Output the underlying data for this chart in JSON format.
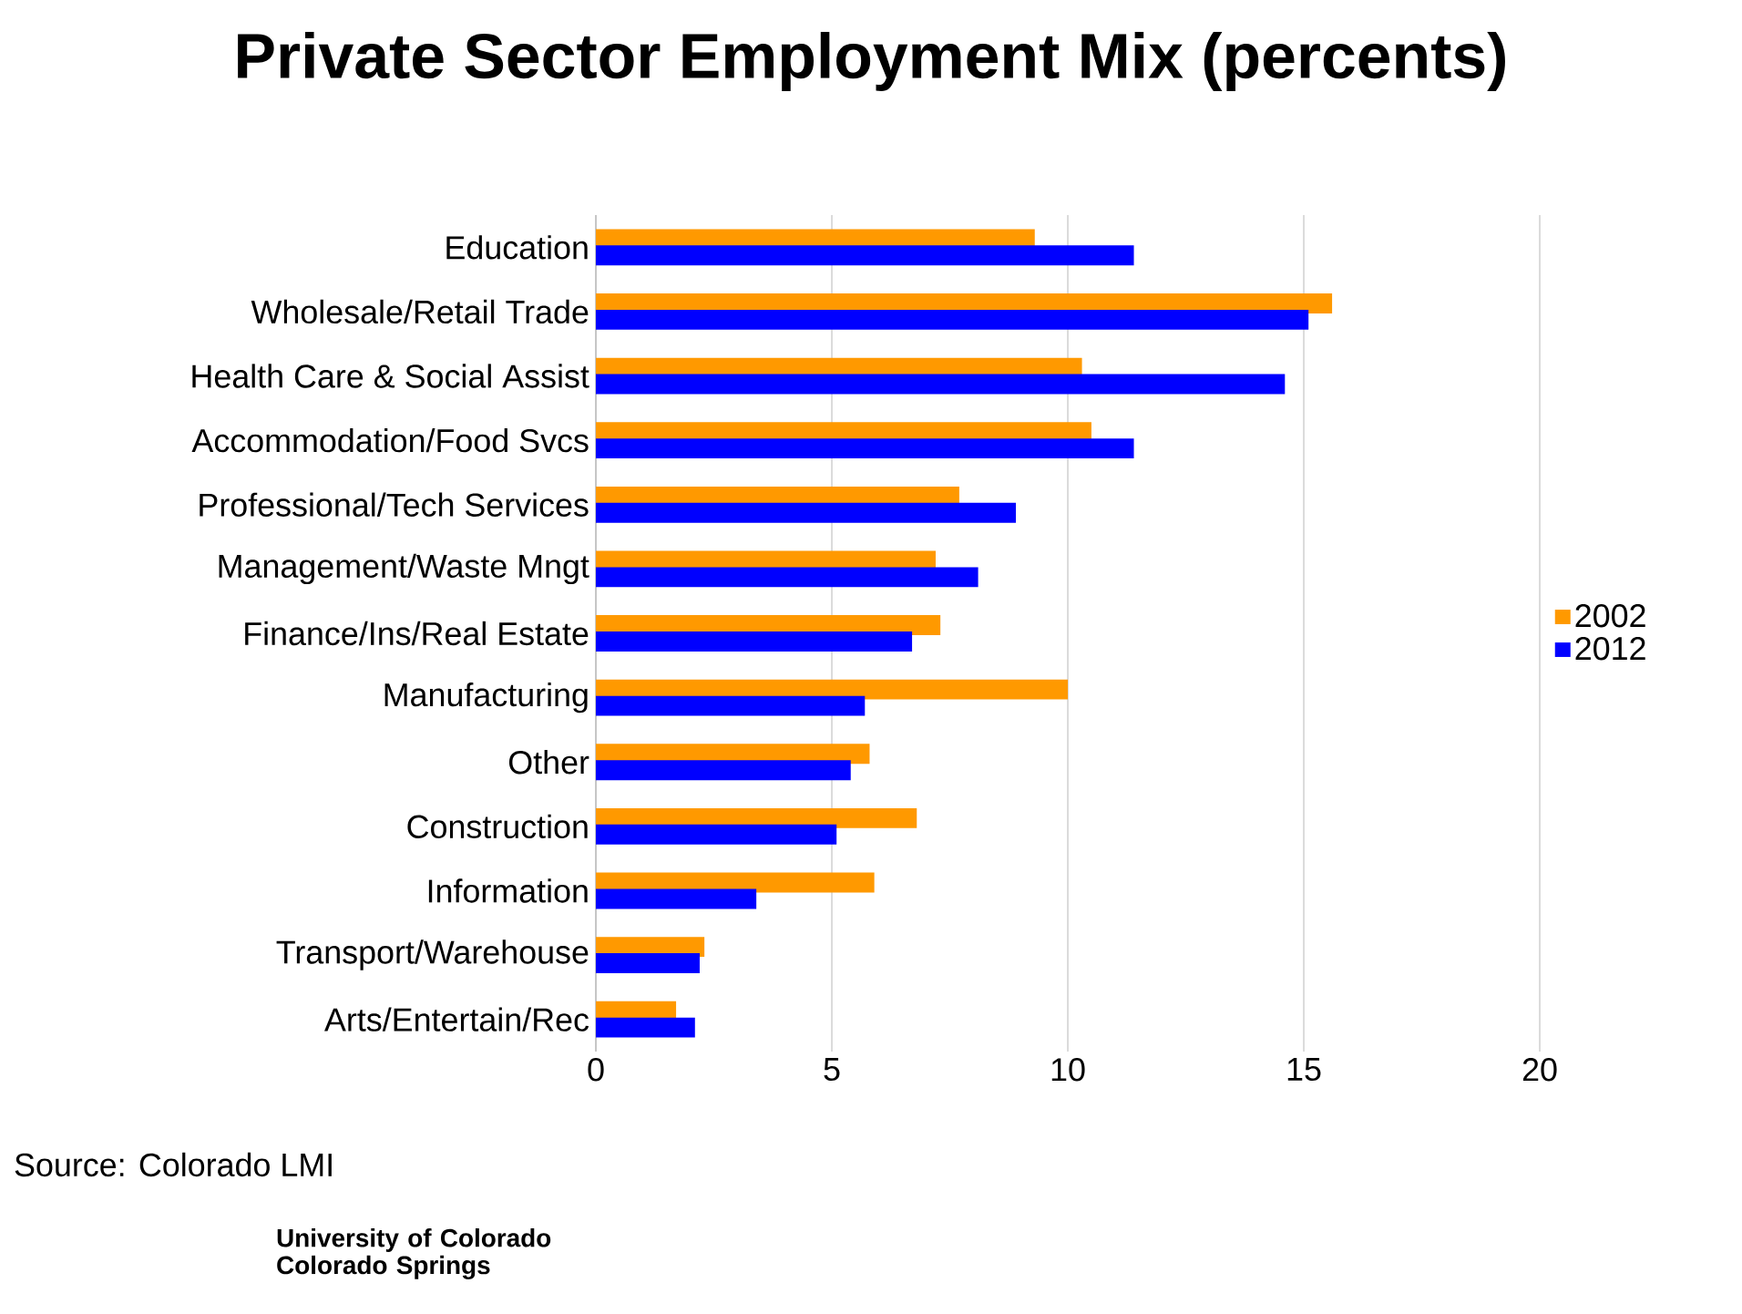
{
  "chart_data": {
    "type": "bar",
    "orientation": "horizontal",
    "title": "Private Sector Employment Mix (percents)",
    "categories": [
      "Education",
      "Wholesale/Retail Trade",
      "Health Care & Social Assist",
      "Accommodation/Food Svcs",
      "Professional/Tech Services",
      "Management/Waste Mngt",
      "Finance/Ins/Real Estate",
      "Manufacturing",
      "Other",
      "Construction",
      "Information",
      "Transport/Warehouse",
      "Arts/Entertain/Rec"
    ],
    "series": [
      {
        "name": "2002",
        "color": "#ff9900",
        "values": [
          9.3,
          15.6,
          10.3,
          10.5,
          7.7,
          7.2,
          7.3,
          10.0,
          5.8,
          6.8,
          5.9,
          2.3,
          1.7
        ]
      },
      {
        "name": "2012",
        "color": "#0000ff",
        "values": [
          11.4,
          15.1,
          14.6,
          11.4,
          8.9,
          8.1,
          6.7,
          5.7,
          5.4,
          5.1,
          3.4,
          2.2,
          2.1
        ]
      }
    ],
    "xlim": [
      0,
      20
    ],
    "xticks": [
      0,
      5,
      10,
      15,
      20
    ],
    "grid": "x",
    "legend": "right",
    "annotations": [
      "Source: Colorado LMI",
      "University of Colorado Colorado Springs"
    ]
  }
}
